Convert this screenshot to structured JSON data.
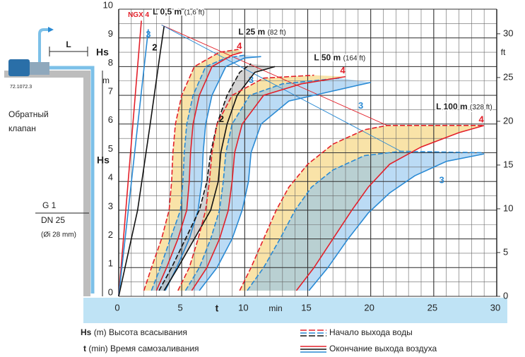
{
  "chart_data": {
    "type": "line",
    "xlabel": "t",
    "xunit": "min",
    "ylabel": "Hs",
    "yunit": "m",
    "y2unit": "ft",
    "xlim": [
      0,
      30
    ],
    "xticks": [
      0,
      5,
      10,
      15,
      20,
      25,
      30
    ],
    "xminor": [
      0,
      1,
      2,
      3,
      4,
      5,
      6,
      7,
      8,
      9,
      10,
      11,
      12,
      13,
      14,
      15,
      16,
      17,
      18,
      19,
      20,
      21,
      22,
      23,
      24,
      25,
      26,
      27,
      28,
      29,
      30
    ],
    "ylim": [
      0,
      10
    ],
    "yticks": [
      0,
      1,
      2,
      3,
      4,
      5,
      6,
      7,
      8,
      9,
      10
    ],
    "yminor": [
      0,
      0.5,
      1,
      1.5,
      2,
      2.5,
      3,
      3.5,
      4,
      4.5,
      5,
      5.5,
      6,
      6.5,
      7,
      7.5,
      8,
      8.5,
      9,
      9.5,
      10
    ],
    "y2lim": [
      0,
      32.81
    ],
    "y2ticks": [
      0,
      5,
      10,
      15,
      20,
      25,
      30
    ],
    "groups": [
      {
        "label": "L 0,5 m",
        "label_ft": "(1,6 ft)",
        "series": [
          {
            "label": "NGX 4",
            "color": "#e3202a",
            "style": "solid",
            "x": [
              0,
              1.8
            ],
            "y": [
              0,
              9.6
            ]
          },
          {
            "label": "3",
            "color": "#2a8ad4",
            "style": "solid",
            "x": [
              0,
              2.35
            ],
            "y": [
              0,
              9.3
            ]
          },
          {
            "label": "2",
            "color": "#111111",
            "style": "solid",
            "x": [
              0,
              1.5,
              2.5,
              3.3,
              3.6
            ],
            "y": [
              0,
              3,
              6,
              8.5,
              9.4
            ]
          }
        ]
      },
      {
        "label": "L 25 m",
        "label_ft": "(82 ft)",
        "series": [
          {
            "color": "#e3202a",
            "style": "dashed",
            "x": [
              2.0,
              2.6,
              3.4,
              4.0,
              4.2,
              4.3,
              4.5,
              5.0,
              6.0,
              8.0,
              9.5
            ],
            "y": [
              0.2,
              1,
              2,
              3,
              4,
              5,
              6,
              7,
              8,
              8.5,
              8.6
            ]
          },
          {
            "color": "#2a8ad4",
            "style": "dashed",
            "x": [
              2.6,
              3.3,
              4.1,
              4.9,
              5.1,
              5.2,
              5.4,
              5.9,
              6.9,
              8.5,
              10.0
            ],
            "y": [
              0.2,
              1,
              2,
              3,
              4,
              5,
              6,
              7,
              8,
              8.3,
              8.4
            ]
          },
          {
            "label": "4",
            "color": "#e3202a",
            "style": "solid",
            "x": [
              3.0,
              3.8,
              4.7,
              5.4,
              5.6,
              5.7,
              5.9,
              6.4,
              7.4,
              9.0,
              9.8
            ],
            "y": [
              0.2,
              1,
              2,
              3,
              4,
              5,
              6,
              7,
              8,
              8.4,
              8.5
            ]
          },
          {
            "label": "3",
            "color": "#2a8ad4",
            "style": "solid",
            "x": [
              3.7,
              4.6,
              5.6,
              6.3,
              6.6,
              6.7,
              6.9,
              7.4,
              8.5,
              10.0,
              11.3
            ],
            "y": [
              0.2,
              1,
              2,
              3,
              4,
              5,
              6,
              7,
              8,
              8.3,
              8.35
            ]
          },
          {
            "color": "#111111",
            "style": "dashed",
            "x": [
              3.2,
              4.2,
              5.3,
              6.4,
              7.0,
              7.3,
              7.8,
              8.6,
              9.6,
              10.5
            ],
            "y": [
              0.2,
              1,
              2,
              3,
              4,
              5,
              6,
              7,
              7.8,
              8.1
            ]
          },
          {
            "label": "2",
            "color": "#111111",
            "style": "solid",
            "x": [
              3.6,
              4.7,
              6.0,
              7.3,
              7.9,
              8.1,
              8.6,
              9.4,
              10.8,
              12.4
            ],
            "y": [
              0.2,
              1,
              2,
              3,
              4,
              5,
              6,
              7,
              7.8,
              8.0
            ]
          }
        ]
      },
      {
        "label": "L 50 m",
        "label_ft": "(164 ft)",
        "series": [
          {
            "color": "#e3202a",
            "style": "dashed",
            "x": [
              4.7,
              5.6,
              6.3,
              6.9,
              7.2,
              7.4,
              7.8,
              9.0,
              11.5,
              15.5
            ],
            "y": [
              0.2,
              1,
              2,
              3,
              4,
              5,
              6,
              7,
              7.6,
              7.7
            ]
          },
          {
            "color": "#2a8ad4",
            "style": "dashed",
            "x": [
              5.3,
              6.4,
              7.3,
              8.0,
              8.3,
              8.5,
              9.0,
              10.4,
              13.0,
              17.5
            ],
            "y": [
              0.2,
              1,
              2,
              3,
              4,
              5,
              6,
              7,
              7.4,
              7.6
            ]
          },
          {
            "label": "4",
            "color": "#e3202a",
            "style": "solid",
            "x": [
              5.8,
              7.0,
              8.0,
              8.7,
              9.0,
              9.2,
              9.8,
              11.5,
              14.5,
              18.0
            ],
            "y": [
              0.2,
              1,
              2,
              3,
              4,
              5,
              6,
              7,
              7.4,
              7.65
            ]
          },
          {
            "label": "3",
            "color": "#2a8ad4",
            "style": "solid",
            "x": [
              6.4,
              7.8,
              9.0,
              9.8,
              10.3,
              10.5,
              11.3,
              13.5,
              16.5,
              20.0
            ],
            "y": [
              0.2,
              1,
              2,
              3,
              4,
              5,
              6,
              6.8,
              7.1,
              7.45
            ]
          }
        ]
      },
      {
        "label": "L 100 m",
        "label_ft": "(328 ft)",
        "series": [
          {
            "color": "#e3202a",
            "style": "dashed",
            "x": [
              9.6,
              10.5,
              11.5,
              12.5,
              13.5,
              15.0,
              17.0,
              19.5,
              21.3,
              29.0
            ],
            "y": [
              0.2,
              1,
              2,
              3,
              3.8,
              4.6,
              5.3,
              5.8,
              5.95,
              5.95
            ]
          },
          {
            "color": "#2a8ad4",
            "style": "dashed",
            "x": [
              10.2,
              11.5,
              12.8,
              14.0,
              15.3,
              17.0,
              19.5,
              22.4,
              29.0
            ],
            "y": [
              0.2,
              1,
              2,
              3,
              3.8,
              4.4,
              4.9,
              5.05,
              5.0
            ]
          },
          {
            "label": "4",
            "color": "#e3202a",
            "style": "solid",
            "x": [
              14.1,
              15.5,
              17.0,
              18.5,
              19.8,
              21.5,
              24.0,
              27.0,
              29.0
            ],
            "y": [
              0.2,
              1,
              2,
              3,
              3.8,
              4.6,
              5.2,
              5.7,
              5.95
            ]
          },
          {
            "label": "3",
            "color": "#2a8ad4",
            "style": "solid",
            "x": [
              15.1,
              16.6,
              18.2,
              19.8,
              21.5,
              23.5,
              26.0,
              29.0
            ],
            "y": [
              0.2,
              1,
              2,
              2.9,
              3.6,
              4.2,
              4.7,
              4.96
            ]
          }
        ]
      }
    ],
    "connectors": [
      {
        "color": "#e3202a",
        "x": [
          3.4,
          21.3
        ],
        "y": [
          9.45,
          5.95
        ]
      },
      {
        "color": "#2a8ad4",
        "x": [
          3.4,
          22.4
        ],
        "y": [
          9.45,
          5.05
        ]
      }
    ],
    "legend": {
      "defs": [
        {
          "sym": "Hs",
          "unit": "(m)",
          "text": "Высота всасывания"
        },
        {
          "sym": "t",
          "unit": "(min)",
          "text": "Время самозаливания"
        }
      ],
      "start": "Начало выхода воды",
      "end": "Окончание выхода воздуха"
    },
    "install": {
      "code": "72.1072.3",
      "valve": [
        "Обратный",
        "клапан"
      ],
      "L": "L",
      "Hs": "Hs",
      "thread": "G 1",
      "dn": "DN 25",
      "inner": "(Øi 28 mm)"
    }
  }
}
